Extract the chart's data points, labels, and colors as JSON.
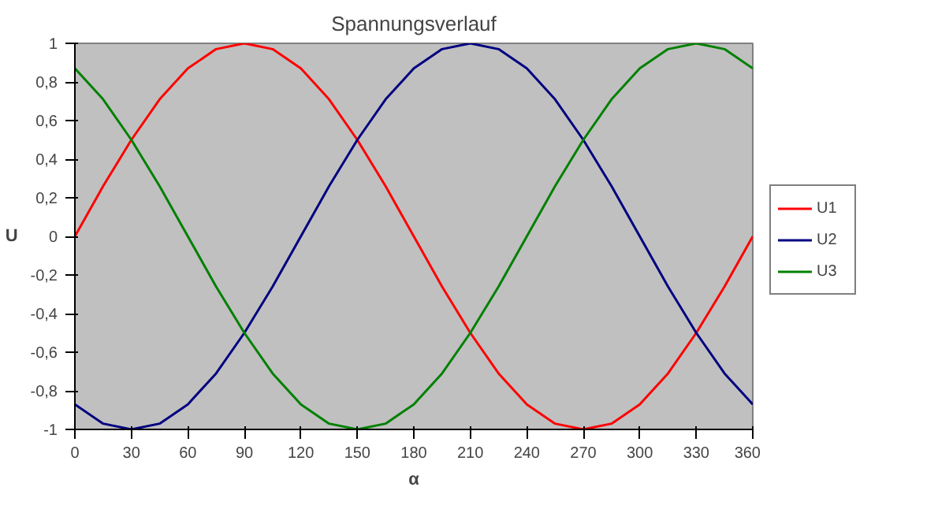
{
  "chart_data": {
    "type": "line",
    "title": "Spannungsverlauf",
    "xlabel": "α",
    "ylabel": "U",
    "x": [
      0,
      15,
      30,
      45,
      60,
      75,
      90,
      105,
      120,
      135,
      150,
      165,
      180,
      195,
      210,
      225,
      240,
      255,
      270,
      285,
      300,
      315,
      330,
      345,
      360
    ],
    "series": [
      {
        "name": "U1",
        "color": "#ff0000",
        "values": [
          0,
          0.26,
          0.5,
          0.71,
          0.87,
          0.97,
          1,
          0.97,
          0.87,
          0.71,
          0.5,
          0.26,
          0,
          -0.26,
          -0.5,
          -0.71,
          -0.87,
          -0.97,
          -1,
          -0.97,
          -0.87,
          -0.71,
          -0.5,
          -0.26,
          0
        ]
      },
      {
        "name": "U2",
        "color": "#000080",
        "values": [
          -0.87,
          -0.97,
          -1,
          -0.97,
          -0.87,
          -0.71,
          -0.5,
          -0.26,
          0,
          0.26,
          0.5,
          0.71,
          0.87,
          0.97,
          1,
          0.97,
          0.87,
          0.71,
          0.5,
          0.26,
          0,
          -0.26,
          -0.5,
          -0.71,
          -0.87
        ]
      },
      {
        "name": "U3",
        "color": "#008000",
        "values": [
          0.87,
          0.71,
          0.5,
          0.26,
          0,
          -0.26,
          -0.5,
          -0.71,
          -0.87,
          -0.97,
          -1,
          -0.97,
          -0.87,
          -0.71,
          -0.5,
          -0.26,
          0,
          0.26,
          0.5,
          0.71,
          0.87,
          0.97,
          1,
          0.97,
          0.87
        ]
      }
    ],
    "xlim": [
      0,
      360
    ],
    "xticks": [
      0,
      30,
      60,
      90,
      120,
      150,
      180,
      210,
      240,
      270,
      300,
      330,
      360
    ],
    "ylim": [
      -1,
      1
    ],
    "yticks": [
      {
        "value": -1,
        "label": "-1"
      },
      {
        "value": -0.8,
        "label": "-0,8"
      },
      {
        "value": -0.6,
        "label": "-0,6"
      },
      {
        "value": -0.4,
        "label": "-0,4"
      },
      {
        "value": -0.2,
        "label": "-0,2"
      },
      {
        "value": 0,
        "label": "0"
      },
      {
        "value": 0.2,
        "label": "0,2"
      },
      {
        "value": 0.4,
        "label": "0,4"
      },
      {
        "value": 0.6,
        "label": "0,6"
      },
      {
        "value": 0.8,
        "label": "0,8"
      },
      {
        "value": 1,
        "label": "1"
      }
    ],
    "grid": false,
    "legend": "right",
    "marker": "none",
    "line_style": "solid"
  }
}
